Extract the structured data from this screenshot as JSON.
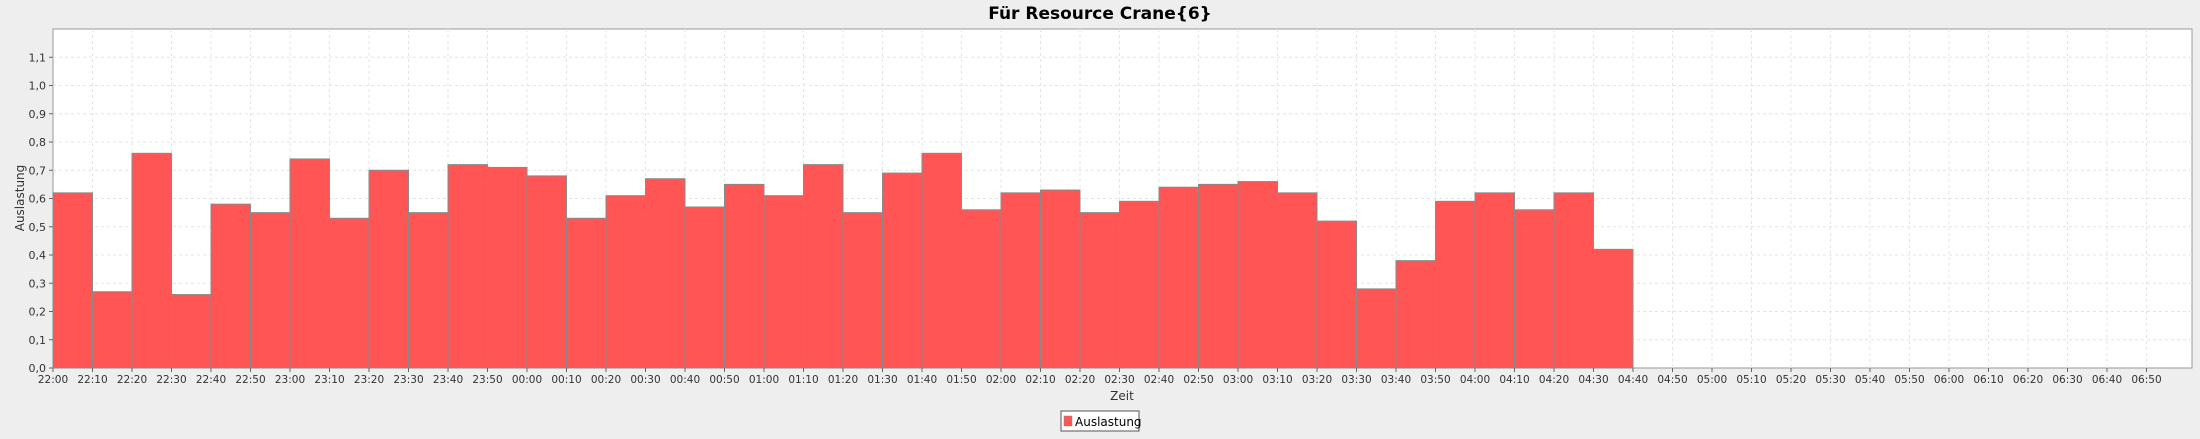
{
  "chart_data": {
    "type": "bar",
    "title": "Für Resource Crane{6}",
    "xlabel": "Zeit",
    "ylabel": "Auslastung",
    "ylim": [
      0,
      1.2
    ],
    "yticks": [
      "0,0",
      "0,1",
      "0,2",
      "0,3",
      "0,4",
      "0,5",
      "0,6",
      "0,7",
      "0,8",
      "0,9",
      "1,0",
      "1,1"
    ],
    "x_tick_labels": [
      "22:00",
      "22:10",
      "22:20",
      "22:30",
      "22:40",
      "22:50",
      "23:00",
      "23:10",
      "23:20",
      "23:30",
      "23:40",
      "23:50",
      "00:00",
      "00:10",
      "00:20",
      "00:30",
      "00:40",
      "00:50",
      "01:00",
      "01:10",
      "01:20",
      "01:30",
      "01:40",
      "01:50",
      "02:00",
      "02:10",
      "02:20",
      "02:30",
      "02:40",
      "02:50",
      "03:00",
      "03:10",
      "03:20",
      "03:30",
      "03:40",
      "03:50",
      "04:00",
      "04:10",
      "04:20",
      "04:30",
      "04:40",
      "04:50",
      "05:00",
      "05:10",
      "05:20",
      "05:30",
      "05:40",
      "05:50",
      "06:00",
      "06:10",
      "06:20",
      "06:30",
      "06:40",
      "06:50"
    ],
    "bar_starts": [
      "22:00",
      "22:10",
      "22:20",
      "22:30",
      "22:40",
      "22:50",
      "23:00",
      "23:10",
      "23:20",
      "23:30",
      "23:40",
      "23:50",
      "00:00",
      "00:10",
      "00:20",
      "00:30",
      "00:40",
      "00:50",
      "01:00",
      "01:10",
      "01:20",
      "01:30",
      "01:40",
      "01:50",
      "02:00",
      "02:10",
      "02:20",
      "02:30",
      "02:40",
      "02:50",
      "03:00",
      "03:10",
      "03:20",
      "03:30",
      "03:40",
      "03:50",
      "04:00",
      "04:10",
      "04:20",
      "04:30"
    ],
    "series": [
      {
        "name": "Auslastung",
        "color": "#ff5555",
        "values": [
          0.62,
          0.27,
          0.76,
          0.26,
          0.58,
          0.55,
          0.74,
          0.53,
          0.7,
          0.55,
          0.72,
          0.71,
          0.68,
          0.53,
          0.61,
          0.67,
          0.57,
          0.65,
          0.61,
          0.72,
          0.55,
          0.69,
          0.76,
          0.56,
          0.62,
          0.63,
          0.55,
          0.59,
          0.64,
          0.65,
          0.66,
          0.62,
          0.52,
          0.28,
          0.38,
          0.59,
          0.62,
          0.56,
          0.62,
          0.42
        ]
      }
    ],
    "grid": true,
    "legend_position": "bottom-center"
  }
}
